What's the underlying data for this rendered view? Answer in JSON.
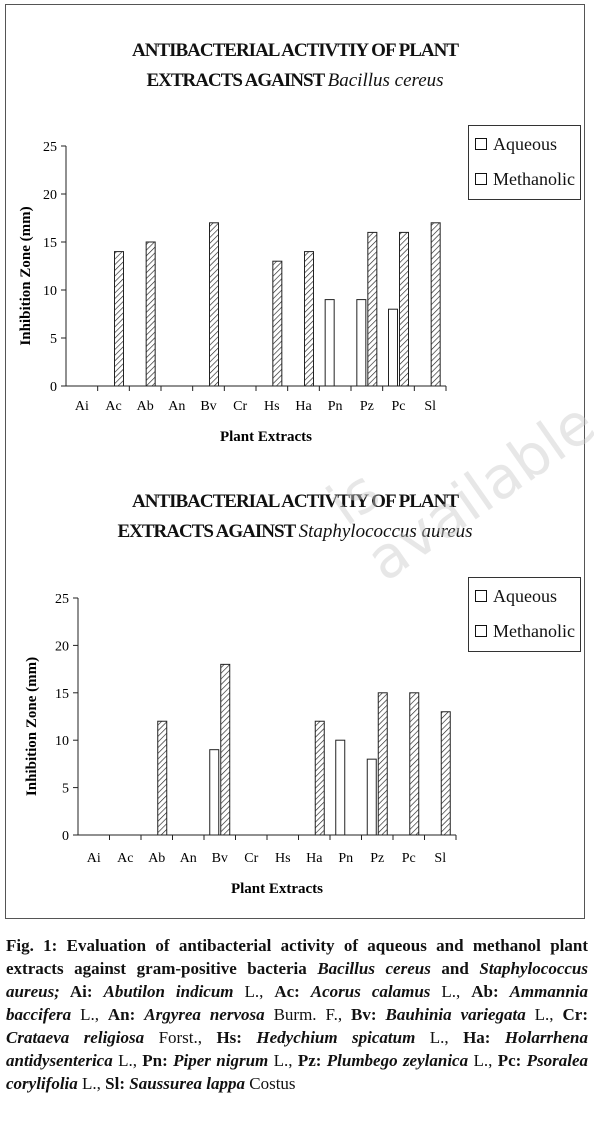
{
  "chart_data": [
    {
      "type": "bar",
      "title_line1": "ANTIBACTERIAL ACTIVTIY OF PLANT",
      "title_line2_plain": "EXTRACTS AGAINST ",
      "title_line2_italic": "Bacillus cereus",
      "xlabel": "Plant Extracts",
      "ylabel": "Inhibition Zone (mm)",
      "ylim": [
        0,
        25
      ],
      "yticks": [
        0,
        5,
        10,
        15,
        20,
        25
      ],
      "categories": [
        "Ai",
        "Ac",
        "Ab",
        "An",
        "Bv",
        "Cr",
        "Hs",
        "Ha",
        "Pn",
        "Pz",
        "Pc",
        "Sl"
      ],
      "series": [
        {
          "name": "Aqueous",
          "pattern": "open",
          "values": [
            0,
            0,
            0,
            0,
            0,
            0,
            0,
            0,
            9,
            9,
            8,
            0
          ]
        },
        {
          "name": "Methanolic",
          "pattern": "hatched",
          "values": [
            0,
            14,
            15,
            0,
            17,
            0,
            13,
            14,
            0,
            16,
            16,
            17
          ]
        }
      ],
      "legend_position": "top-right"
    },
    {
      "type": "bar",
      "title_line1": "ANTIBACTERIAL ACTIVTIY OF PLANT",
      "title_line2_plain": "EXTRACTS AGAINST ",
      "title_line2_italic": "Staphylococcus aureus",
      "xlabel": "Plant Extracts",
      "ylabel": "Inhibition Zone (mm)",
      "ylim": [
        0,
        25
      ],
      "yticks": [
        0,
        5,
        10,
        15,
        20,
        25
      ],
      "categories": [
        "Ai",
        "Ac",
        "Ab",
        "An",
        "Bv",
        "Cr",
        "Hs",
        "Ha",
        "Pn",
        "Pz",
        "Pc",
        "Sl"
      ],
      "series": [
        {
          "name": "Aqueous",
          "pattern": "open",
          "values": [
            0,
            0,
            0,
            0,
            9,
            0,
            0,
            0,
            10,
            8,
            0,
            0
          ]
        },
        {
          "name": "Methanolic",
          "pattern": "hatched",
          "values": [
            0,
            0,
            12,
            0,
            18,
            0,
            0,
            12,
            0,
            15,
            15,
            13
          ]
        }
      ],
      "legend_position": "top-right"
    }
  ],
  "caption": {
    "label": "Fig. 1:",
    "lead": " Evaluation of antibacterial activity of aqueous and methanol plant extracts against gram-positive bacteria ",
    "bc": "Bacillus cereus",
    "and": " and ",
    "sa": "Staphylococcus aureus;",
    "items": [
      {
        "abbr": " Ai: ",
        "name": "Abutilon indicum",
        "auth": " L., "
      },
      {
        "abbr": "Ac: ",
        "name": "Acorus calamus",
        "auth": " L., "
      },
      {
        "abbr": "Ab: ",
        "name": "Ammannia baccifera",
        "auth": " L., "
      },
      {
        "abbr": "An: ",
        "name": "Argyrea nervosa",
        "auth": " Burm. F., "
      },
      {
        "abbr": "Bv: ",
        "name": "Bauhinia variegata",
        "auth": " L., "
      },
      {
        "abbr": "Cr: ",
        "name": "Crataeva religiosa",
        "auth": " Forst., "
      },
      {
        "abbr": "Hs: ",
        "name": "Hedychium spicatum",
        "auth": " L., "
      },
      {
        "abbr": "Ha: ",
        "name": "Holarrhena antidysenterica",
        "auth": " L., "
      },
      {
        "abbr": "Pn: ",
        "name": "Piper nigrum",
        "auth": " L., "
      },
      {
        "abbr": "Pz: ",
        "name": "Plumbego zeylanica",
        "auth": " L., "
      },
      {
        "abbr": "Pc: ",
        "name": "Psoralea corylifolia",
        "auth": " L., "
      },
      {
        "abbr": "Sl: ",
        "name": "Saussurea lappa",
        "auth": " Costus"
      }
    ]
  },
  "colors": {
    "bar_fill_open": "#ffffff",
    "bar_stroke": "#222222",
    "axis": "#222222"
  }
}
